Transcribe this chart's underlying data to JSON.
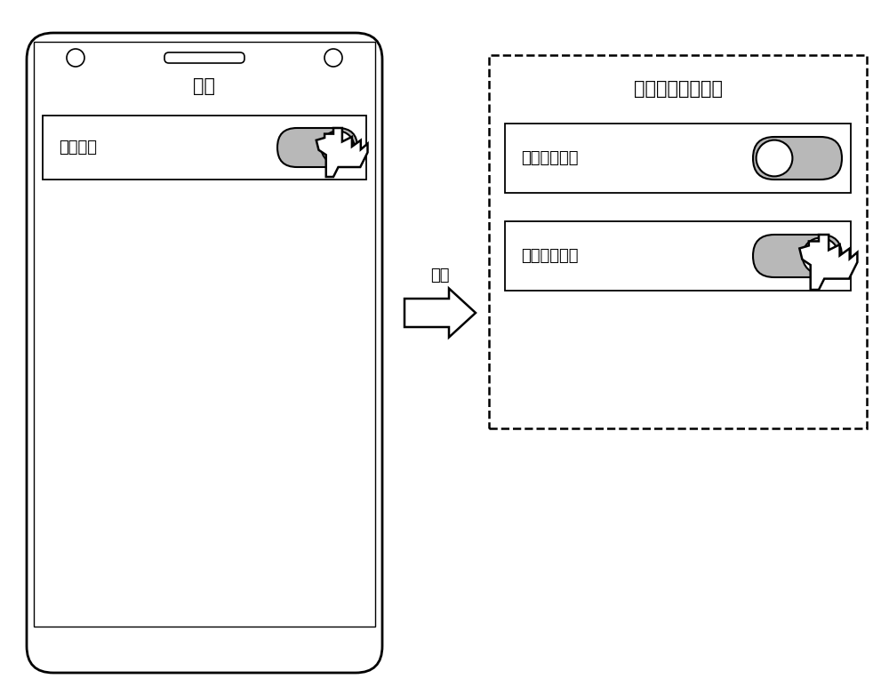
{
  "bg_color": "#ffffff",
  "line_color": "#000000",
  "gray_color": "#b8b8b8",
  "title_settings": "设置",
  "label_optimize": "优化网络",
  "title_select": "选择网络优化方式",
  "label_auto": "自动优化网络",
  "label_manual": "手动优化网络",
  "arrow_label": "打开",
  "font_size_title": 15,
  "font_size_label": 13,
  "font_size_arrow": 13
}
